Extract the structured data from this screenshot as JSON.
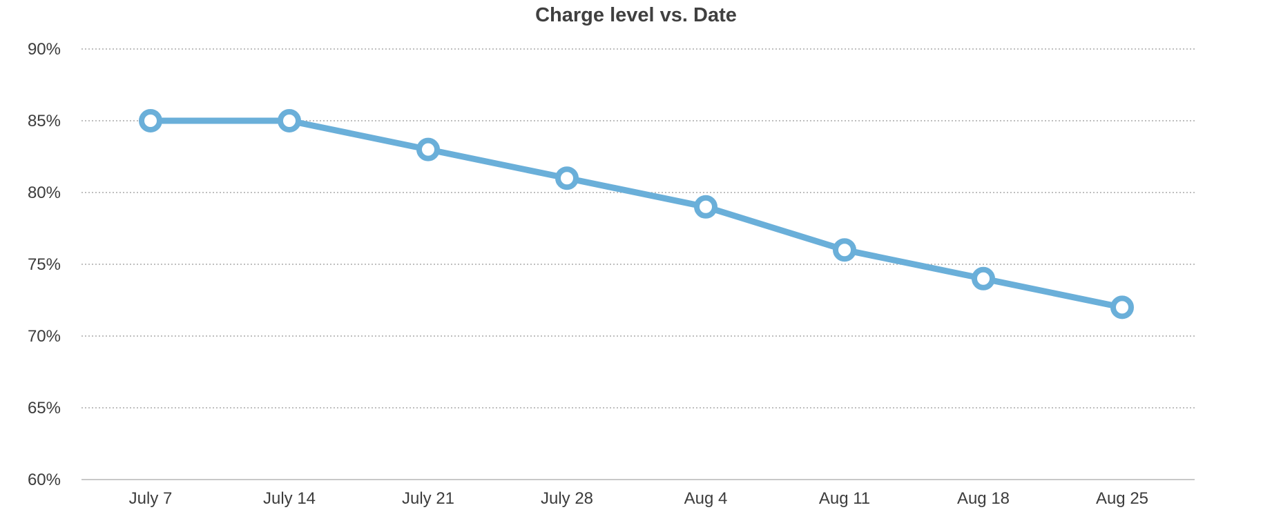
{
  "chart_data": {
    "type": "line",
    "title": "Charge level vs. Date",
    "xlabel": "",
    "ylabel": "",
    "categories": [
      "July 7",
      "July 14",
      "July 21",
      "July 28",
      "Aug 4",
      "Aug 11",
      "Aug 18",
      "Aug 25"
    ],
    "series": [
      {
        "values": [
          85,
          85,
          83,
          81,
          79,
          76,
          74,
          72
        ],
        "color": "#6aafd9"
      }
    ],
    "ylim": [
      60,
      90
    ],
    "yticks": [
      60,
      65,
      70,
      75,
      80,
      85,
      90
    ],
    "ytick_format": "{v}%",
    "grid": true,
    "legend": "none"
  }
}
